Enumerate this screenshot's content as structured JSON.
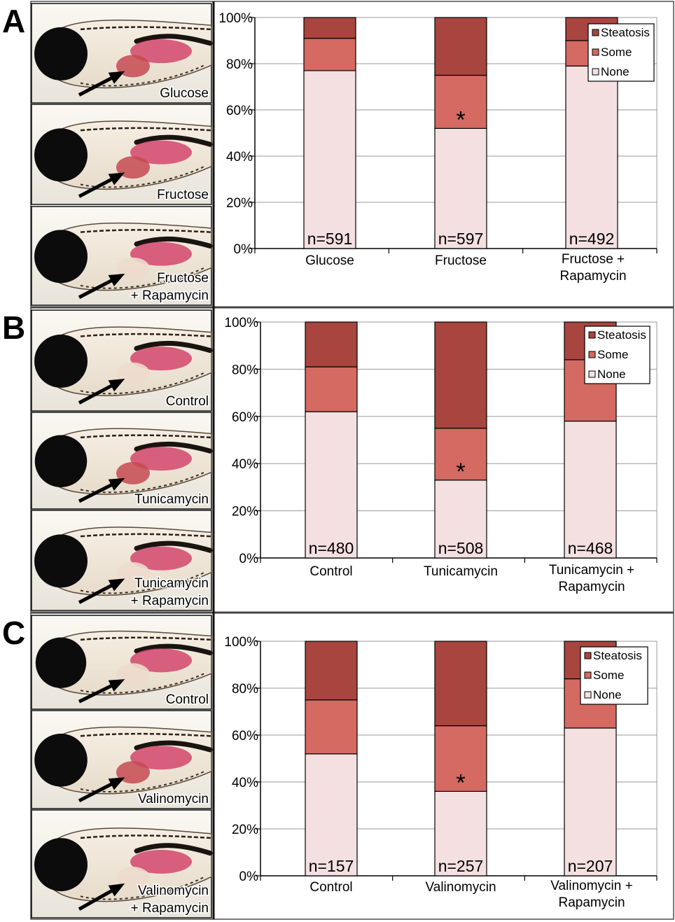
{
  "panels": [
    {
      "letter": "A",
      "photos": [
        {
          "label_lines": [
            "Glucose"
          ],
          "liver": "red"
        },
        {
          "label_lines": [
            "Fructose"
          ],
          "liver": "red"
        },
        {
          "label_lines": [
            "Fructose",
            "+ Rapamycin"
          ],
          "liver": "pale"
        }
      ]
    },
    {
      "letter": "B",
      "photos": [
        {
          "label_lines": [
            "Control"
          ],
          "liver": "pale"
        },
        {
          "label_lines": [
            "Tunicamycin"
          ],
          "liver": "red"
        },
        {
          "label_lines": [
            "Tunicamycin",
            "+ Rapamycin"
          ],
          "liver": "pale"
        }
      ]
    },
    {
      "letter": "C",
      "photos": [
        {
          "label_lines": [
            "Control"
          ],
          "liver": "pale"
        },
        {
          "label_lines": [
            "Valinomycin"
          ],
          "liver": "red"
        },
        {
          "label_lines": [
            "Valinomycin",
            "+ Rapamycin"
          ],
          "liver": "pale"
        }
      ]
    }
  ],
  "chart_data": [
    {
      "type": "bar",
      "stacked": true,
      "percent": true,
      "categories": [
        [
          "Glucose"
        ],
        [
          "Fructose"
        ],
        [
          "Fructose +",
          "Rapamycin"
        ]
      ],
      "series": [
        {
          "name": "None",
          "values": [
            77,
            52,
            79
          ],
          "color": "#f4e0e0"
        },
        {
          "name": "Some",
          "values": [
            14,
            23,
            11
          ],
          "color": "#d46a62"
        },
        {
          "name": "Steatosis",
          "values": [
            9,
            25,
            10
          ],
          "color": "#a8453f"
        }
      ],
      "n_labels": [
        "n=591",
        "n=597",
        "n=492"
      ],
      "significance": [
        "",
        "*",
        ""
      ],
      "yticks": [
        "0%",
        "20%",
        "40%",
        "60%",
        "80%",
        "100%"
      ],
      "ylim": [
        0,
        100
      ],
      "legend": [
        "Steatosis",
        "Some",
        "None"
      ],
      "legend_position": "top-right",
      "grid": true
    },
    {
      "type": "bar",
      "stacked": true,
      "percent": true,
      "categories": [
        [
          "Control"
        ],
        [
          "Tunicamycin"
        ],
        [
          "Tunicamycin +",
          "Rapamycin"
        ]
      ],
      "series": [
        {
          "name": "None",
          "values": [
            62,
            33,
            58
          ],
          "color": "#f4e0e0"
        },
        {
          "name": "Some",
          "values": [
            19,
            22,
            26
          ],
          "color": "#d46a62"
        },
        {
          "name": "Steatosis",
          "values": [
            19,
            45,
            16
          ],
          "color": "#a8453f"
        }
      ],
      "n_labels": [
        "n=480",
        "n=508",
        "n=468"
      ],
      "significance": [
        "",
        "*",
        ""
      ],
      "yticks": [
        "0%",
        "20%",
        "40%",
        "60%",
        "80%",
        "100%"
      ],
      "ylim": [
        0,
        100
      ],
      "legend": [
        "Steatosis",
        "Some",
        "None"
      ],
      "legend_position": "top-right",
      "grid": true
    },
    {
      "type": "bar",
      "stacked": true,
      "percent": true,
      "categories": [
        [
          "Control"
        ],
        [
          "Valinomycin"
        ],
        [
          "Valinomycin +",
          "Rapamycin"
        ]
      ],
      "series": [
        {
          "name": "None",
          "values": [
            52,
            36,
            63
          ],
          "color": "#f4e0e0"
        },
        {
          "name": "Some",
          "values": [
            23,
            28,
            21
          ],
          "color": "#d46a62"
        },
        {
          "name": "Steatosis",
          "values": [
            25,
            36,
            16
          ],
          "color": "#a8453f"
        }
      ],
      "n_labels": [
        "n=157",
        "n=257",
        "n=207"
      ],
      "significance": [
        "",
        "*",
        ""
      ],
      "yticks": [
        "0%",
        "20%",
        "40%",
        "60%",
        "80%",
        "100%"
      ],
      "ylim": [
        0,
        100
      ],
      "legend": [
        "Steatosis",
        "Some",
        "None"
      ],
      "legend_position": "top-right",
      "grid": true
    }
  ]
}
